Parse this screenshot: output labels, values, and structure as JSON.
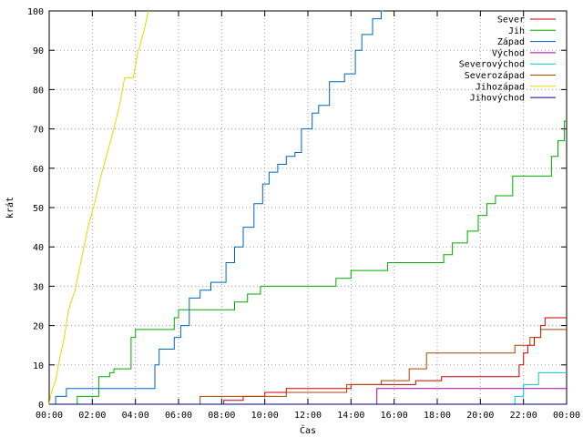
{
  "chart_data": {
    "type": "line",
    "title": "",
    "xlabel": "Čas",
    "ylabel": "krát",
    "xlim": [
      0,
      24
    ],
    "ylim": [
      0,
      100
    ],
    "x_tick_labels": [
      "00:00",
      "02:00",
      "04:00",
      "06:00",
      "08:00",
      "10:00",
      "12:00",
      "14:00",
      "16:00",
      "18:00",
      "20:00",
      "22:00",
      "00:00"
    ],
    "y_tick_labels": [
      "0",
      "10",
      "20",
      "30",
      "40",
      "50",
      "60",
      "70",
      "80",
      "90",
      "100"
    ],
    "x_ticks_hours": [
      0,
      2,
      4,
      6,
      8,
      10,
      12,
      14,
      16,
      18,
      20,
      22,
      24
    ],
    "y_ticks": [
      0,
      10,
      20,
      30,
      40,
      50,
      60,
      70,
      80,
      90,
      100
    ],
    "grid": true,
    "legend_position": "top-right",
    "series": [
      {
        "name": "Sever",
        "color": "#cc0000",
        "points": [
          [
            0,
            0
          ],
          [
            8.1,
            0
          ],
          [
            8.1,
            1
          ],
          [
            9.0,
            1
          ],
          [
            9.0,
            2
          ],
          [
            10.0,
            2
          ],
          [
            10.0,
            3
          ],
          [
            11.0,
            3
          ],
          [
            11.0,
            4
          ],
          [
            14.0,
            4
          ],
          [
            14.0,
            5
          ],
          [
            17.0,
            5
          ],
          [
            17.0,
            6
          ],
          [
            18.2,
            6
          ],
          [
            18.2,
            7
          ],
          [
            21.8,
            7
          ],
          [
            21.8,
            10
          ],
          [
            22.0,
            10
          ],
          [
            22.0,
            13
          ],
          [
            22.2,
            13
          ],
          [
            22.2,
            15
          ],
          [
            22.5,
            15
          ],
          [
            22.5,
            17
          ],
          [
            22.8,
            17
          ],
          [
            22.8,
            20
          ],
          [
            23.0,
            20
          ],
          [
            23.0,
            22
          ],
          [
            24,
            22
          ]
        ]
      },
      {
        "name": "Jih",
        "color": "#00aa00",
        "points": [
          [
            0,
            0
          ],
          [
            1.3,
            0
          ],
          [
            1.3,
            2
          ],
          [
            2.3,
            2
          ],
          [
            2.3,
            7
          ],
          [
            2.8,
            7
          ],
          [
            2.8,
            8
          ],
          [
            3.0,
            8
          ],
          [
            3.0,
            9
          ],
          [
            3.8,
            9
          ],
          [
            3.8,
            17
          ],
          [
            4.0,
            17
          ],
          [
            4.0,
            19
          ],
          [
            5.8,
            19
          ],
          [
            5.8,
            22
          ],
          [
            6.0,
            22
          ],
          [
            6.0,
            24
          ],
          [
            8.6,
            24
          ],
          [
            8.6,
            26
          ],
          [
            9.2,
            26
          ],
          [
            9.2,
            28
          ],
          [
            9.8,
            28
          ],
          [
            9.8,
            30
          ],
          [
            13.3,
            30
          ],
          [
            13.3,
            32
          ],
          [
            14.0,
            32
          ],
          [
            14.0,
            34
          ],
          [
            15.7,
            34
          ],
          [
            15.7,
            36
          ],
          [
            18.3,
            36
          ],
          [
            18.3,
            38
          ],
          [
            18.7,
            38
          ],
          [
            18.7,
            41
          ],
          [
            19.4,
            41
          ],
          [
            19.4,
            44
          ],
          [
            19.9,
            44
          ],
          [
            19.9,
            48
          ],
          [
            20.3,
            48
          ],
          [
            20.3,
            51
          ],
          [
            20.7,
            51
          ],
          [
            20.7,
            53
          ],
          [
            21.5,
            53
          ],
          [
            21.5,
            58
          ],
          [
            23.3,
            58
          ],
          [
            23.3,
            63
          ],
          [
            23.6,
            63
          ],
          [
            23.6,
            67
          ],
          [
            23.9,
            67
          ],
          [
            23.9,
            72
          ],
          [
            24,
            72
          ]
        ]
      },
      {
        "name": "Západ",
        "color": "#0066bb",
        "points": [
          [
            0,
            0
          ],
          [
            0.3,
            0
          ],
          [
            0.3,
            2
          ],
          [
            0.8,
            2
          ],
          [
            0.8,
            4
          ],
          [
            4.9,
            4
          ],
          [
            4.9,
            10
          ],
          [
            5.1,
            10
          ],
          [
            5.1,
            14
          ],
          [
            5.8,
            14
          ],
          [
            5.8,
            17
          ],
          [
            6.1,
            17
          ],
          [
            6.1,
            20
          ],
          [
            6.5,
            20
          ],
          [
            6.5,
            27
          ],
          [
            7.0,
            27
          ],
          [
            7.0,
            29
          ],
          [
            7.5,
            29
          ],
          [
            7.5,
            31
          ],
          [
            8.2,
            31
          ],
          [
            8.2,
            36
          ],
          [
            8.6,
            36
          ],
          [
            8.6,
            40
          ],
          [
            9.0,
            40
          ],
          [
            9.0,
            45
          ],
          [
            9.5,
            45
          ],
          [
            9.5,
            51
          ],
          [
            9.9,
            51
          ],
          [
            9.9,
            56
          ],
          [
            10.2,
            56
          ],
          [
            10.2,
            59
          ],
          [
            10.6,
            59
          ],
          [
            10.6,
            61
          ],
          [
            11.0,
            61
          ],
          [
            11.0,
            63
          ],
          [
            11.4,
            63
          ],
          [
            11.4,
            64
          ],
          [
            11.7,
            64
          ],
          [
            11.7,
            70
          ],
          [
            12.2,
            70
          ],
          [
            12.2,
            74
          ],
          [
            12.5,
            74
          ],
          [
            12.5,
            76
          ],
          [
            13.0,
            76
          ],
          [
            13.0,
            82
          ],
          [
            13.7,
            82
          ],
          [
            13.7,
            84
          ],
          [
            14.2,
            84
          ],
          [
            14.2,
            90
          ],
          [
            14.5,
            90
          ],
          [
            14.5,
            94
          ],
          [
            15.0,
            94
          ],
          [
            15.0,
            98
          ],
          [
            15.4,
            98
          ],
          [
            15.4,
            100
          ],
          [
            15.5,
            100
          ]
        ]
      },
      {
        "name": "Východ",
        "color": "#aa00aa",
        "points": [
          [
            0,
            0
          ],
          [
            15.2,
            0
          ],
          [
            15.2,
            4
          ],
          [
            24,
            4
          ]
        ]
      },
      {
        "name": "Severovýchod",
        "color": "#00cccc",
        "points": [
          [
            0,
            0
          ],
          [
            21.6,
            0
          ],
          [
            21.6,
            2
          ],
          [
            22.0,
            2
          ],
          [
            22.0,
            5
          ],
          [
            22.7,
            5
          ],
          [
            22.7,
            8
          ],
          [
            24,
            8
          ]
        ]
      },
      {
        "name": "Severozápad",
        "color": "#aa4400",
        "points": [
          [
            0,
            0
          ],
          [
            7.0,
            0
          ],
          [
            7.0,
            2
          ],
          [
            11.0,
            2
          ],
          [
            11.0,
            3
          ],
          [
            13.8,
            3
          ],
          [
            13.8,
            5
          ],
          [
            15.4,
            5
          ],
          [
            15.4,
            6
          ],
          [
            16.7,
            6
          ],
          [
            16.7,
            9
          ],
          [
            17.5,
            9
          ],
          [
            17.5,
            13
          ],
          [
            21.6,
            13
          ],
          [
            21.6,
            15
          ],
          [
            22.3,
            15
          ],
          [
            22.3,
            17
          ],
          [
            22.8,
            17
          ],
          [
            22.8,
            19
          ],
          [
            24,
            19
          ]
        ]
      },
      {
        "name": "Jihozápad",
        "color": "#dddd00",
        "points": [
          [
            0,
            0
          ],
          [
            0.1,
            3
          ],
          [
            0.3,
            6
          ],
          [
            0.5,
            12
          ],
          [
            0.7,
            17
          ],
          [
            0.9,
            24
          ],
          [
            1.2,
            29
          ],
          [
            1.5,
            37
          ],
          [
            1.8,
            45
          ],
          [
            2.1,
            51
          ],
          [
            2.4,
            58
          ],
          [
            2.7,
            64
          ],
          [
            3.0,
            70
          ],
          [
            3.3,
            77
          ],
          [
            3.5,
            83
          ],
          [
            3.9,
            83
          ],
          [
            4.1,
            89
          ],
          [
            4.4,
            95
          ],
          [
            4.6,
            100
          ]
        ]
      },
      {
        "name": "Jihovýchod",
        "color": "#000088",
        "points": [
          [
            0,
            0
          ],
          [
            24,
            0
          ]
        ]
      }
    ]
  }
}
